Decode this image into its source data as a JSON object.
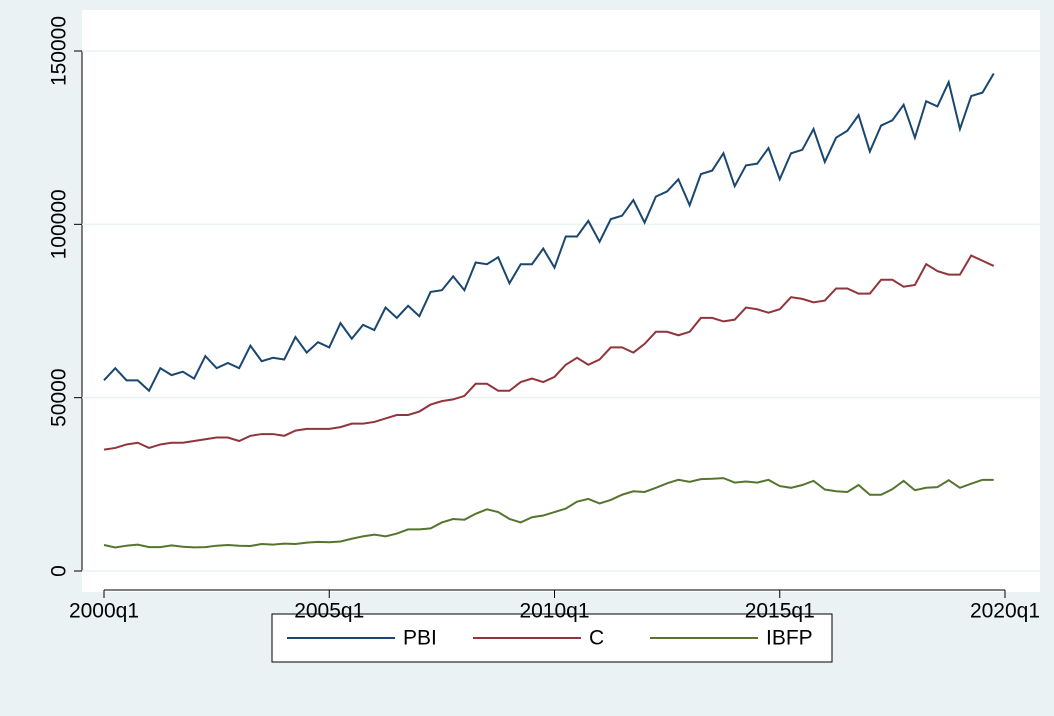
{
  "chart_data": {
    "type": "line",
    "x": [
      2000,
      2000.25,
      2000.5,
      2000.75,
      2001,
      2001.25,
      2001.5,
      2001.75,
      2002,
      2002.25,
      2002.5,
      2002.75,
      2003,
      2003.25,
      2003.5,
      2003.75,
      2004,
      2004.25,
      2004.5,
      2004.75,
      2005,
      2005.25,
      2005.5,
      2005.75,
      2006,
      2006.25,
      2006.5,
      2006.75,
      2007,
      2007.25,
      2007.5,
      2007.75,
      2008,
      2008.25,
      2008.5,
      2008.75,
      2009,
      2009.25,
      2009.5,
      2009.75,
      2010,
      2010.25,
      2010.5,
      2010.75,
      2011,
      2011.25,
      2011.5,
      2011.75,
      2012,
      2012.25,
      2012.5,
      2012.75,
      2013,
      2013.25,
      2013.5,
      2013.75,
      2014,
      2014.25,
      2014.5,
      2014.75,
      2015,
      2015.25,
      2015.5,
      2015.75,
      2016,
      2016.25,
      2016.5,
      2016.75,
      2017,
      2017.25,
      2017.5,
      2017.75,
      2018,
      2018.25,
      2018.5,
      2018.75,
      2019,
      2019.25,
      2019.5,
      2019.75
    ],
    "series": [
      {
        "name": "PBI",
        "color": "#1a476f",
        "values": [
          55000,
          58500,
          55000,
          55000,
          52000,
          58500,
          56500,
          57500,
          55500,
          62000,
          58500,
          60000,
          58500,
          65000,
          60500,
          61500,
          61000,
          67500,
          63000,
          66000,
          64500,
          71500,
          67000,
          71000,
          69500,
          76000,
          73000,
          76500,
          73500,
          80500,
          81000,
          85000,
          81000,
          89000,
          88500,
          90500,
          83000,
          88500,
          88500,
          93000,
          87500,
          96500,
          96500,
          101000,
          95000,
          101500,
          102500,
          107000,
          100500,
          108000,
          109500,
          113000,
          105500,
          114500,
          115500,
          120500,
          111000,
          117000,
          117500,
          122000,
          113000,
          120500,
          121500,
          127500,
          118000,
          125000,
          127000,
          131500,
          121000,
          128500,
          130000,
          134500,
          125000,
          135500,
          134000,
          141000,
          127500,
          137000,
          138000,
          143500
        ]
      },
      {
        "name": "C",
        "color": "#90353b",
        "values": [
          35000,
          35500,
          36500,
          37000,
          35500,
          36500,
          37000,
          37000,
          37500,
          38000,
          38500,
          38500,
          37500,
          39000,
          39500,
          39500,
          39000,
          40500,
          41000,
          41000,
          41000,
          41500,
          42500,
          42500,
          43000,
          44000,
          45000,
          45000,
          46000,
          48000,
          49000,
          49500,
          50500,
          54000,
          54000,
          52000,
          52000,
          54500,
          55500,
          54500,
          56000,
          59500,
          61500,
          59500,
          61000,
          64500,
          64500,
          63000,
          65500,
          69000,
          69000,
          68000,
          69000,
          73000,
          73000,
          72000,
          72500,
          76000,
          75500,
          74500,
          75500,
          79000,
          78500,
          77500,
          78000,
          81500,
          81500,
          80000,
          80000,
          84000,
          84000,
          82000,
          82500,
          88500,
          86500,
          85500,
          85500,
          91000,
          89500,
          88000
        ]
      },
      {
        "name": "IBFP",
        "color": "#55752f",
        "values": [
          7500,
          6800,
          7300,
          7600,
          6900,
          6900,
          7400,
          7000,
          6800,
          6900,
          7300,
          7500,
          7300,
          7200,
          7800,
          7600,
          7900,
          7800,
          8200,
          8400,
          8300,
          8500,
          9300,
          10000,
          10500,
          10000,
          10800,
          12000,
          12000,
          12300,
          14000,
          15000,
          14800,
          16500,
          17800,
          17000,
          15000,
          14000,
          15500,
          16000,
          17000,
          18000,
          20000,
          20800,
          19500,
          20500,
          22000,
          23000,
          22800,
          24000,
          25300,
          26300,
          25700,
          26500,
          26600,
          26800,
          25500,
          25800,
          25500,
          26300,
          24500,
          24000,
          24800,
          26000,
          23500,
          23000,
          22800,
          24800,
          22000,
          22000,
          23600,
          26000,
          23300,
          24000,
          24200,
          26200,
          24000,
          25200,
          26300,
          26300
        ]
      }
    ],
    "xlim": [
      2000,
      2020
    ],
    "xticks": [
      {
        "value": 2000,
        "label": "2000q1"
      },
      {
        "value": 2005,
        "label": "2005q1"
      },
      {
        "value": 2010,
        "label": "2010q1"
      },
      {
        "value": 2015,
        "label": "2015q1"
      },
      {
        "value": 2020,
        "label": "2020q1"
      }
    ],
    "ylim": [
      0,
      150000
    ],
    "yticks": [
      0,
      50000,
      100000,
      150000
    ],
    "grid": true,
    "legend": "bottom"
  }
}
